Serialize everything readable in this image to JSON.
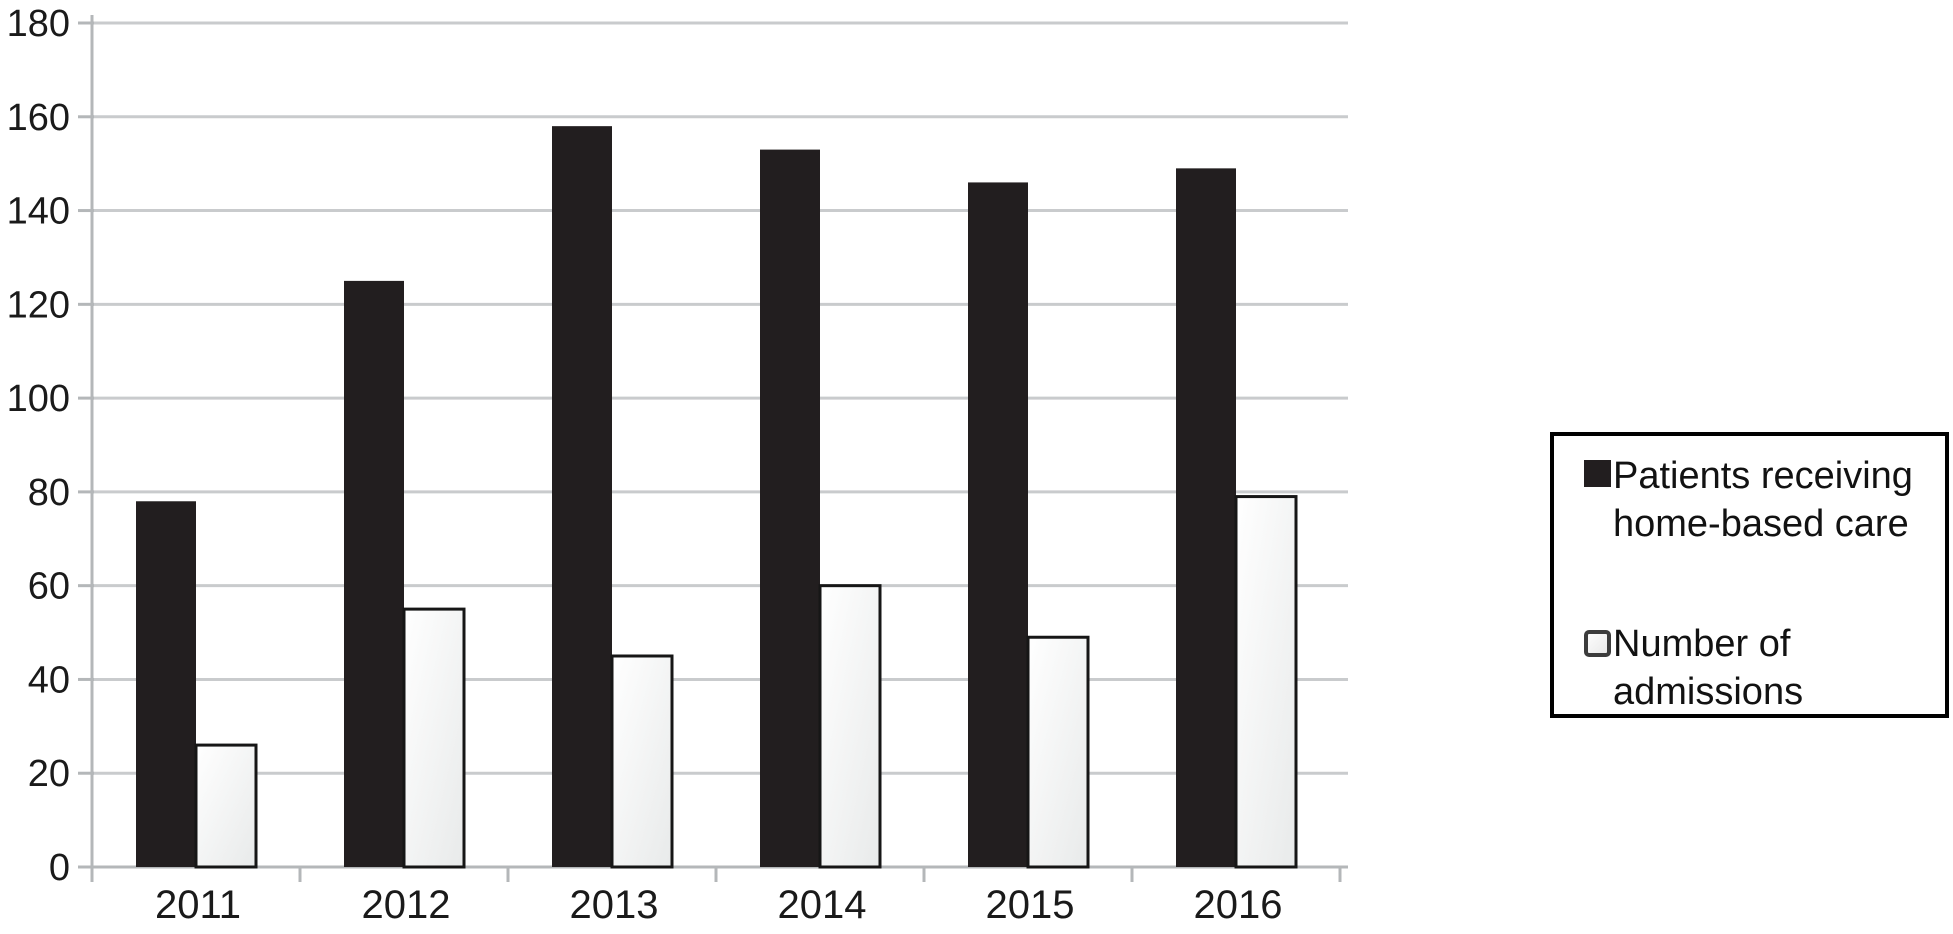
{
  "chart_data": {
    "type": "bar",
    "title": "",
    "xlabel": "",
    "ylabel": "",
    "categories": [
      "2011",
      "2012",
      "2013",
      "2014",
      "2015",
      "2016"
    ],
    "series": [
      {
        "key": "patients",
        "name": "Patients receiving home-based care",
        "style": "filled",
        "values": [
          78,
          125,
          158,
          153,
          146,
          149
        ]
      },
      {
        "key": "admissions",
        "name": "Number of admissions",
        "style": "outlined",
        "values": [
          26,
          55,
          45,
          60,
          49,
          79
        ]
      }
    ],
    "ylim": [
      0,
      180
    ],
    "yticks": [
      0,
      20,
      40,
      60,
      80,
      100,
      120,
      140,
      160,
      180
    ],
    "grid": true,
    "legend_position": "right"
  },
  "legend": {
    "items": [
      {
        "label": "Patients receiving home-based care",
        "swatch": "filled-black-square"
      },
      {
        "label": "Number of admissions",
        "swatch": "outlined-white-square"
      }
    ]
  },
  "colors": {
    "bar_filled": "#221e1f",
    "bar_outlined_fill_start": "#ffffff",
    "bar_outlined_fill_end": "#e8eaea",
    "bar_outline_stroke": "#161616",
    "gridline": "#c9cbcd",
    "axis": "#b4b7b9",
    "text": "#1a1a1a",
    "legend_border": "#000000",
    "background": "#ffffff"
  }
}
